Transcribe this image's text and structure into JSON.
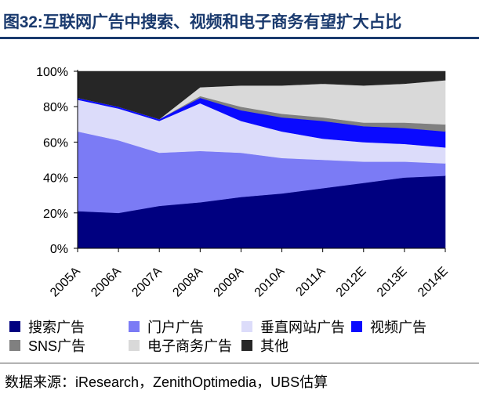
{
  "title": "图32:互联网广告中搜索、视频和电子商务有望扩大占比",
  "source": "数据来源：iResearch，ZenithOptimedia，UBS估算",
  "chart_data": {
    "type": "area",
    "stacked": true,
    "percent": true,
    "categories": [
      "2005A",
      "2006A",
      "2007A",
      "2008A",
      "2009A",
      "2010A",
      "2011A",
      "2012E",
      "2013E",
      "2014E"
    ],
    "yticks": [
      "0%",
      "20%",
      "40%",
      "60%",
      "80%",
      "100%"
    ],
    "ylim": [
      0,
      100
    ],
    "series": [
      {
        "name": "搜索广告",
        "color": "#000080",
        "values": [
          21,
          20,
          24,
          26,
          29,
          31,
          34,
          37,
          40,
          41
        ]
      },
      {
        "name": "门户广告",
        "color": "#7b7bf5",
        "values": [
          45,
          41,
          30,
          29,
          25,
          20,
          16,
          12,
          9,
          7
        ]
      },
      {
        "name": "垂直网站广告",
        "color": "#dcdcfa",
        "values": [
          18,
          18,
          18,
          27,
          18,
          15,
          12,
          11,
          10,
          9
        ]
      },
      {
        "name": "视频广告",
        "color": "#0a0aff",
        "values": [
          1,
          1,
          1,
          3,
          6,
          8,
          10,
          9,
          9,
          9
        ]
      },
      {
        "name": "SNS广告",
        "color": "#808080",
        "values": [
          0,
          0,
          0,
          1,
          2,
          2,
          2,
          2,
          3,
          4
        ]
      },
      {
        "name": "电子商务广告",
        "color": "#d9d9d9",
        "values": [
          0,
          0,
          0,
          5,
          12,
          16,
          19,
          21,
          22,
          25
        ]
      },
      {
        "name": "其他",
        "color": "#262626",
        "values": [
          15,
          20,
          27,
          9,
          8,
          8,
          7,
          8,
          7,
          5
        ]
      }
    ]
  }
}
